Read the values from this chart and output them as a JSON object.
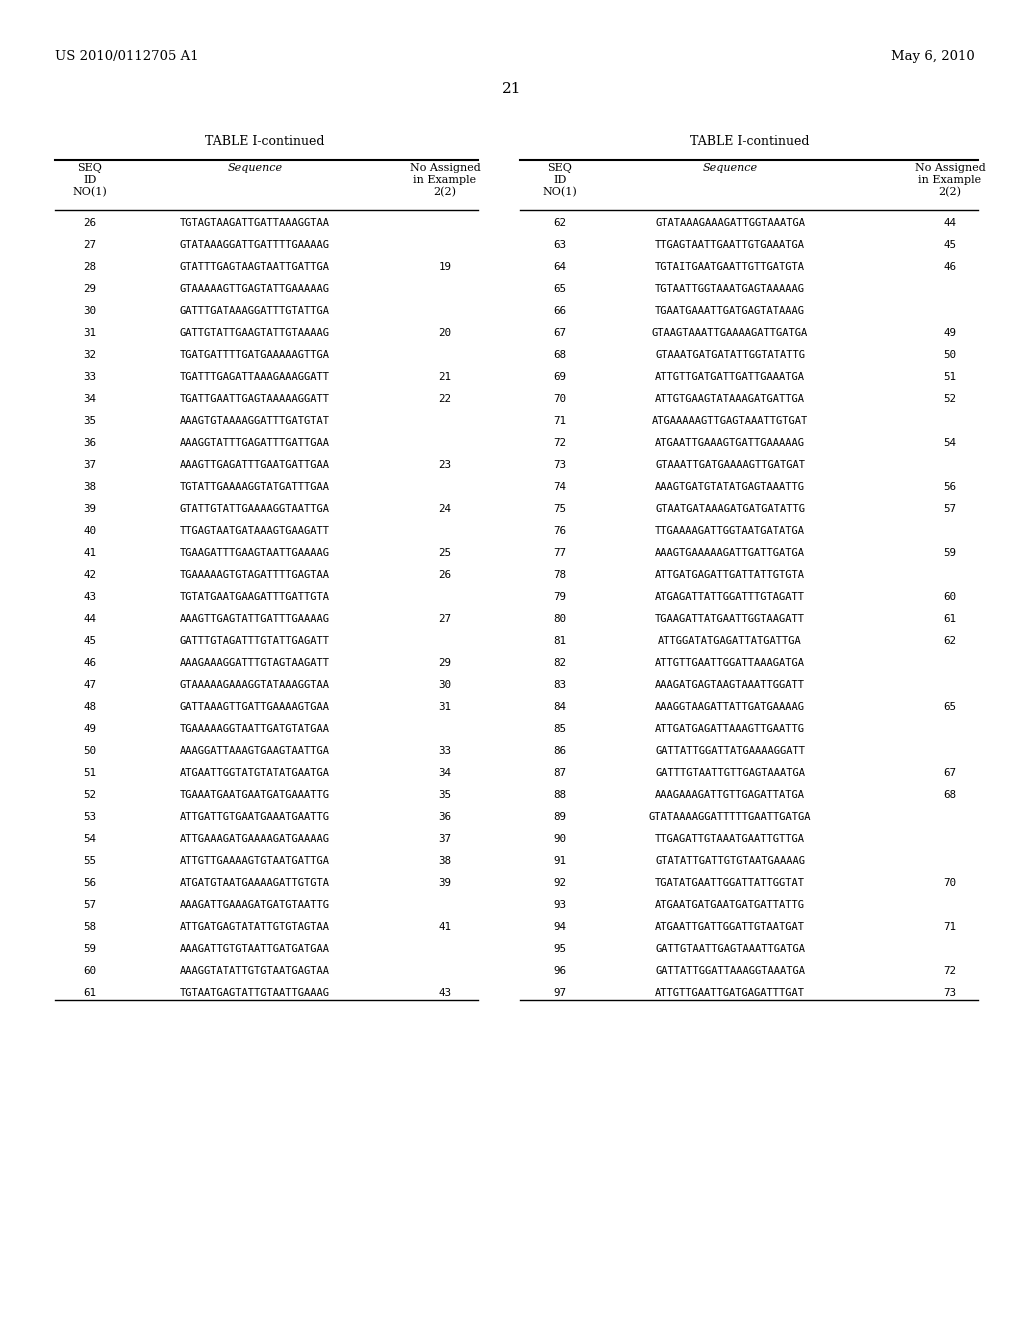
{
  "header_left": "US 2010/0112705 A1",
  "header_right": "May 6, 2010",
  "page_number": "21",
  "table_title": "TABLE I-continued",
  "left_table": [
    [
      26,
      "TGTAGTAAGATTGATTAAAGGTAA",
      ""
    ],
    [
      27,
      "GTATAAAGGATTGATTTTGAAAAG",
      ""
    ],
    [
      28,
      "GTATTTGAGTAAGTAATTGATTGA",
      "19"
    ],
    [
      29,
      "GTAAAAAGTTGAGTATTGAAAAAG",
      ""
    ],
    [
      30,
      "GATTTGATAAAGGATTTGTATTGA",
      ""
    ],
    [
      31,
      "GATTGTATTGAAGTATTGTAAAAG",
      "20"
    ],
    [
      32,
      "TGATGATTTTGATGAAAAAGTTGA",
      ""
    ],
    [
      33,
      "TGATTTGAGATTAAAGAAAGGATT",
      "21"
    ],
    [
      34,
      "TGATTGAATTGAGTAAAAAGGATT",
      "22"
    ],
    [
      35,
      "AAAGTGTAAAAGGATTTGATGTAT",
      ""
    ],
    [
      36,
      "AAAGGTATTTGAGATTTGATTGAA",
      ""
    ],
    [
      37,
      "AAAGTTGAGATTTGAATGATTGAA",
      "23"
    ],
    [
      38,
      "TGTATTGAAAAGGTATGATTTGAA",
      ""
    ],
    [
      39,
      "GTATTGTATTGAAAAGGTAATTGA",
      "24"
    ],
    [
      40,
      "TTGAGTAATGATAAAGTGAAGATT",
      ""
    ],
    [
      41,
      "TGAAGATTTGAAGTAATTGAAAAG",
      "25"
    ],
    [
      42,
      "TGAAAAAGTGTAGATTTTGAGTAA",
      "26"
    ],
    [
      43,
      "TGTATGAATGAAGATTTGATTGTA",
      ""
    ],
    [
      44,
      "AAAGTTGAGTATTGATTTGAAAAG",
      "27"
    ],
    [
      45,
      "GATTTGTAGATTTGTATTGAGATT",
      ""
    ],
    [
      46,
      "AAAGAAAGGATTTGTAGTAAGATT",
      "29"
    ],
    [
      47,
      "GTAAAAAGAAAGGTATAAAGGTAA",
      "30"
    ],
    [
      48,
      "GATTAAAGTTGATTGAAAAGTGAA",
      "31"
    ],
    [
      49,
      "TGAAAAAGGTAATTGATGTATGAA",
      ""
    ],
    [
      50,
      "AAAGGATTAAAGTGAAGTAATTGA",
      "33"
    ],
    [
      51,
      "ATGAATTGGTATGTATATGAATGA",
      "34"
    ],
    [
      52,
      "TGAAATGAATGAATGATGAAATTG",
      "35"
    ],
    [
      53,
      "ATTGATTGTGAATGAAATGAATTG",
      "36"
    ],
    [
      54,
      "ATTGAAAGATGAAAAGATGAAAAG",
      "37"
    ],
    [
      55,
      "ATTGTTGAAAAGTGTAATGATTGA",
      "38"
    ],
    [
      56,
      "ATGATGTAATGAAAAGATTGTGTA",
      "39"
    ],
    [
      57,
      "AAAGATTGAAAGATGATGTAATTG",
      ""
    ],
    [
      58,
      "ATTGATGAGTATATTGTGTAGTAA",
      "41"
    ],
    [
      59,
      "AAAGATTGTGTAATTGATGATGAA",
      ""
    ],
    [
      60,
      "AAAGGTATATTGTGTAATGAGTAA",
      ""
    ],
    [
      61,
      "TGTAATGAGTATTGTAATTGAAAG",
      "43"
    ]
  ],
  "right_table": [
    [
      62,
      "GTATAAAGAAAGATTGGTAAATGA",
      "44"
    ],
    [
      63,
      "TTGAGTAATTGAATTGTGAAATGA",
      "45"
    ],
    [
      64,
      "TGTAITGAATGAATTGTTGATGTA",
      "46"
    ],
    [
      65,
      "TGTAATTGGTAAATGAGTAAAAAG",
      ""
    ],
    [
      66,
      "TGAATGAAATTGATGAGTATAAAG",
      ""
    ],
    [
      67,
      "GTAAGTAAATTGAAAAGATTGATGA",
      "49"
    ],
    [
      68,
      "GTAAATGATGATATTGGTATATTG",
      "50"
    ],
    [
      69,
      "ATTGTTGATGATTGATTGAAATGA",
      "51"
    ],
    [
      70,
      "ATTGTGAAGTATAAAGATGATTGA",
      "52"
    ],
    [
      71,
      "ATGAAAAAGTTGAGTAAATTGTGAT",
      ""
    ],
    [
      72,
      "ATGAATTGAAAGTGATTGAAAAAG",
      "54"
    ],
    [
      73,
      "GTAAATTGATGAAAAGTTGATGAT",
      ""
    ],
    [
      74,
      "AAAGTGATGTATATGAGTAAATTG",
      "56"
    ],
    [
      75,
      "GTAATGATAAAGATGATGATATTG",
      "57"
    ],
    [
      76,
      "TTGAAAAGATTGGTAATGATATGA",
      ""
    ],
    [
      77,
      "AAAGTGAAAAAGATTGATTGATGA",
      "59"
    ],
    [
      78,
      "ATTGATGAGATTGATTATTGTGTA",
      ""
    ],
    [
      79,
      "ATGAGATTATTGGATTTGTAGATT",
      "60"
    ],
    [
      80,
      "TGAAGATTATGAATTGGTAAGATT",
      "61"
    ],
    [
      81,
      "ATTGGATATGAGATTATGATTGA",
      "62"
    ],
    [
      82,
      "ATTGTTGAATTGGATTAAAGATGA",
      ""
    ],
    [
      83,
      "AAAGATGAGTAAGTAAATTGGATT",
      ""
    ],
    [
      84,
      "AAAGGTAAGATTATTGATGAAAAG",
      "65"
    ],
    [
      85,
      "ATTGATGAGATTAAAGTTGAATTG",
      ""
    ],
    [
      86,
      "GATTATTGGATTATGAAAAGGATT",
      ""
    ],
    [
      87,
      "GATTTGTAATTGTTGAGTAAATGA",
      "67"
    ],
    [
      88,
      "AAAGAAAGATTGTTGAGATTATGA",
      "68"
    ],
    [
      89,
      "GTATAAAAGGATTTTTGAATTGATGA",
      ""
    ],
    [
      90,
      "TTGAGATTGTAAATGAATTGTTGA",
      ""
    ],
    [
      91,
      "GTATATTGATTGTGTAATGAAAAG",
      ""
    ],
    [
      92,
      "TGATATGAATTGGATTATTGGTAT",
      "70"
    ],
    [
      93,
      "ATGAATGATGAATGATGATTATTG",
      ""
    ],
    [
      94,
      "ATGAATTGATTGGATTGTAATGAT",
      "71"
    ],
    [
      95,
      "GATTGTAATTGAGTAAATTGATGA",
      ""
    ],
    [
      96,
      "GATTATTGGATTAAAGGTAAATGA",
      "72"
    ],
    [
      97,
      "ATTGTTGAATTGATGAGATTTGAT",
      "73"
    ]
  ],
  "bg_color": "#ffffff",
  "text_color": "#000000"
}
